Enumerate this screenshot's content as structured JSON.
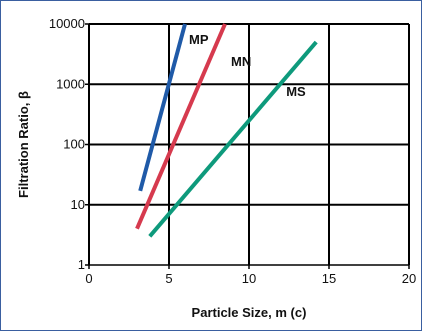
{
  "chart_data": {
    "type": "line",
    "xlabel": "Particle Size, m (c)",
    "ylabel": "Filtration Ratio, β",
    "xlim": [
      0,
      20
    ],
    "ylim": [
      1,
      10000
    ],
    "y_scale": "log",
    "grid": true,
    "legend": "none",
    "x_ticks": [
      "0",
      "5",
      "10",
      "15",
      "20"
    ],
    "y_ticks": [
      "1",
      "10",
      "100",
      "1000",
      "10000"
    ],
    "series": [
      {
        "name": "MP",
        "color": "#1f5aa8",
        "x": [
          3.2,
          6.0
        ],
        "y": [
          17,
          10000
        ]
      },
      {
        "name": "MN",
        "color": "#d63a4e",
        "x": [
          3.0,
          8.5
        ],
        "y": [
          4,
          10000
        ]
      },
      {
        "name": "MS",
        "color": "#0e9a7c",
        "x": [
          3.8,
          14.2
        ],
        "y": [
          3,
          5000
        ]
      }
    ]
  }
}
